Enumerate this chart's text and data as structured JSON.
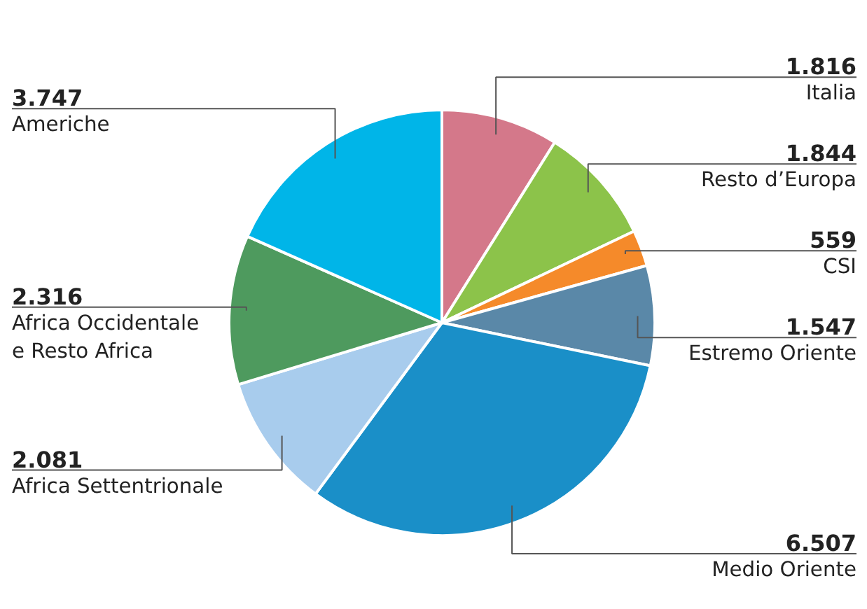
{
  "chart_data": {
    "type": "pie",
    "categories": [
      "Italia",
      "Resto d’Europa",
      "CSI",
      "Estremo Oriente",
      "Medio Oriente",
      "Africa Settentrionale",
      "Africa Occidentale\ne Resto Africa",
      "Americhe"
    ],
    "values": [
      1816,
      1844,
      559,
      1547,
      6507,
      2081,
      2316,
      3747
    ],
    "value_labels": [
      "1.816",
      "1.844",
      "559",
      "1.547",
      "6.507",
      "2.081",
      "2.316",
      "3.747"
    ],
    "colors": [
      "#d4788a",
      "#8cc34a",
      "#f58a2a",
      "#5a88a8",
      "#1a8fc8",
      "#a8cced",
      "#4e9a5e",
      "#00b5e8"
    ]
  }
}
